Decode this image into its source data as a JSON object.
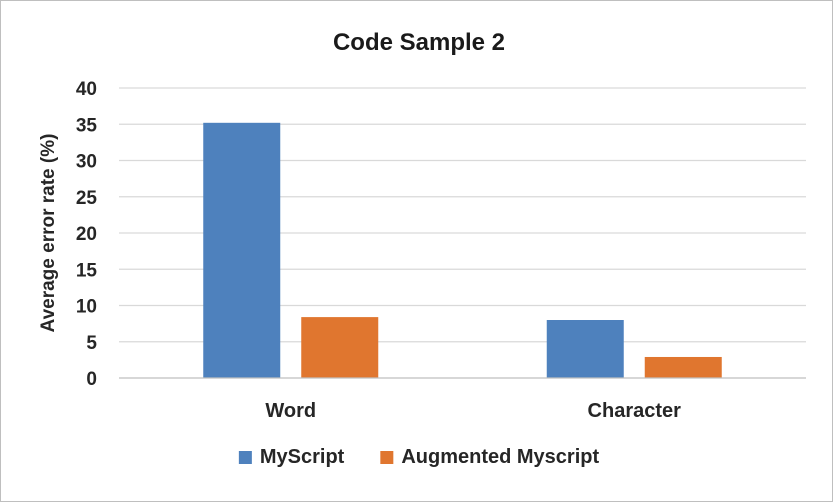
{
  "chart_data": {
    "type": "bar",
    "title": "Code Sample 2",
    "xlabel": "",
    "ylabel": "Average error rate (%)",
    "categories": [
      "Word",
      "Character"
    ],
    "series": [
      {
        "name": "MyScript",
        "values": [
          35.2,
          8.0
        ],
        "color": "#4e81bd"
      },
      {
        "name": "Augmented Myscript",
        "values": [
          8.4,
          2.9
        ],
        "color": "#e0762f"
      }
    ],
    "ylim": [
      0,
      40
    ],
    "yticks": [
      "0",
      "5",
      "10",
      "15",
      "20",
      "25",
      "30",
      "35",
      "40"
    ],
    "grid": true,
    "legend_position": "bottom"
  }
}
